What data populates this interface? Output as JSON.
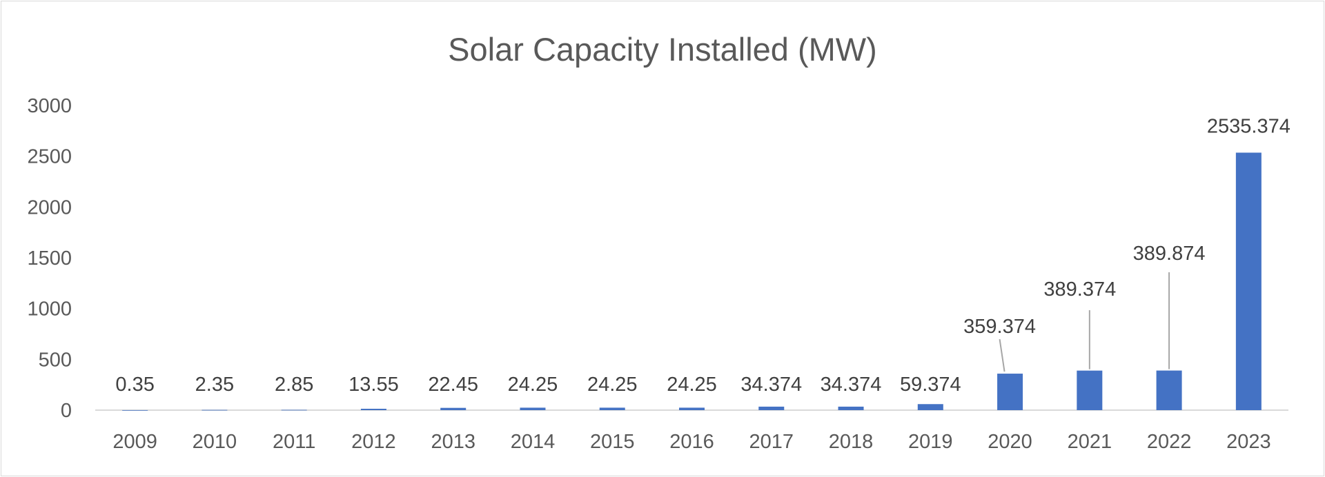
{
  "chart_data": {
    "type": "bar",
    "title": "Solar Capacity Installed (MW)",
    "xlabel": "",
    "ylabel": "",
    "categories": [
      "2009",
      "2010",
      "2011",
      "2012",
      "2013",
      "2014",
      "2015",
      "2016",
      "2017",
      "2018",
      "2019",
      "2020",
      "2021",
      "2022",
      "2023"
    ],
    "values": [
      0.35,
      2.35,
      2.85,
      13.55,
      22.45,
      24.25,
      24.25,
      24.25,
      34.374,
      34.374,
      59.374,
      359.374,
      389.374,
      389.874,
      2535.374
    ],
    "data_labels": [
      "0.35",
      "2.35",
      "2.85",
      "13.55",
      "22.45",
      "24.25",
      "24.25",
      "24.25",
      "34.374",
      "34.374",
      "59.374",
      "359.374",
      "389.374",
      "389.874",
      "2535.374"
    ],
    "ylim": [
      0,
      3000
    ],
    "yticks": [
      "0",
      "500",
      "1000",
      "1500",
      "2000",
      "2500",
      "3000"
    ],
    "grid": false,
    "legend": "none",
    "bar_color": "#4472C4"
  }
}
